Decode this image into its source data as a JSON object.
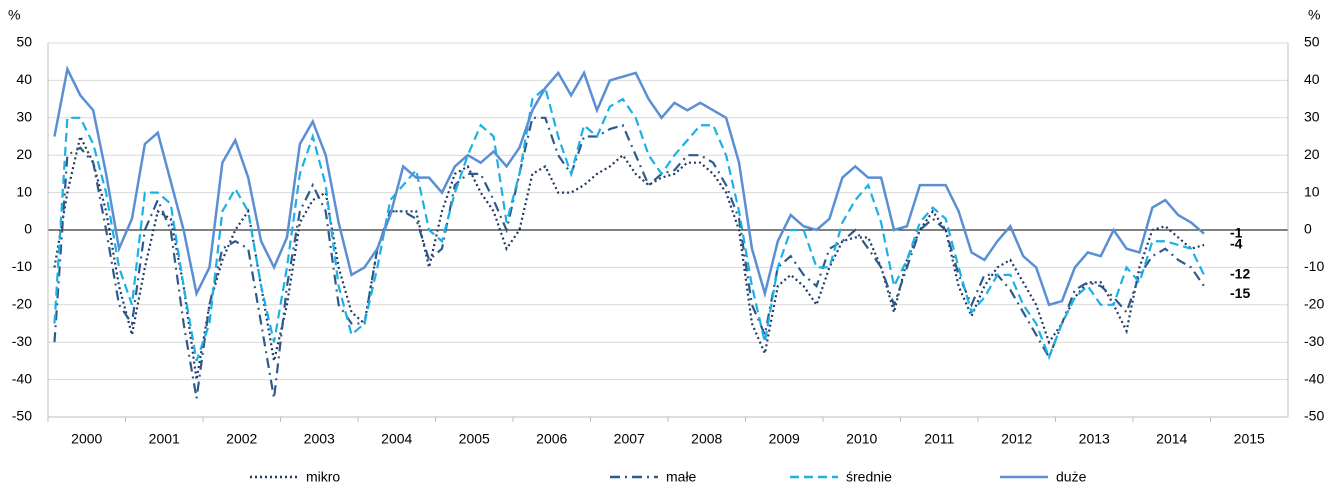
{
  "chart_data": {
    "type": "line",
    "y_unit": "%",
    "categories": [
      "2000",
      null,
      null,
      null,
      null,
      null,
      "2001",
      null,
      null,
      null,
      null,
      null,
      "2002",
      null,
      null,
      null,
      null,
      null,
      "2003",
      null,
      null,
      null,
      null,
      null,
      "2004",
      null,
      null,
      null,
      null,
      null,
      "2005",
      null,
      null,
      null,
      null,
      null,
      "2006",
      null,
      null,
      null,
      null,
      null,
      "2007",
      null,
      null,
      null,
      null,
      null,
      "2008",
      null,
      null,
      null,
      null,
      null,
      "2009",
      null,
      null,
      null,
      null,
      null,
      "2010",
      null,
      null,
      null,
      null,
      null,
      "2011",
      null,
      null,
      null,
      null,
      null,
      "2012",
      null,
      null,
      null,
      null,
      null,
      "2013",
      null,
      null,
      null,
      null,
      null,
      "2014",
      null,
      null,
      null,
      null,
      null,
      "2015",
      null,
      null,
      null,
      null,
      null
    ],
    "ylim": [
      -50,
      50
    ],
    "yticks": [
      -50,
      -40,
      -30,
      -20,
      -10,
      0,
      10,
      20,
      30,
      40,
      50
    ],
    "grid": true,
    "series": [
      {
        "name": "mikro",
        "color": "#1f3864",
        "dash": "dotted",
        "values": [
          -10,
          10,
          25,
          18,
          5,
          -15,
          -28,
          -10,
          5,
          3,
          -15,
          -40,
          -20,
          -8,
          0,
          5,
          -15,
          -35,
          -20,
          2,
          8,
          10,
          -10,
          -22,
          -25,
          -5,
          5,
          5,
          5,
          -10,
          5,
          15,
          17,
          10,
          5,
          -5,
          0,
          15,
          17,
          10,
          10,
          12,
          15,
          17,
          20,
          15,
          12,
          14,
          15,
          18,
          18,
          15,
          10,
          0,
          -25,
          -33,
          -15,
          -12,
          -15,
          -20,
          -10,
          -3,
          -2,
          -2,
          -10,
          -22,
          -8,
          0,
          5,
          0,
          -15,
          -23,
          -15,
          -10,
          -8,
          -14,
          -20,
          -30,
          -25,
          -18,
          -14,
          -14,
          -20,
          -27,
          -10,
          0,
          1,
          -2,
          -5,
          -4,
          null,
          null,
          null,
          null,
          null,
          null
        ]
      },
      {
        "name": "małe",
        "color": "#2e5a8a",
        "dash": "dashdot",
        "values": [
          -30,
          20,
          22,
          18,
          0,
          -20,
          -25,
          0,
          8,
          0,
          -25,
          -45,
          -20,
          -5,
          -3,
          -5,
          -25,
          -45,
          -15,
          5,
          12,
          5,
          -20,
          -25,
          -25,
          -5,
          5,
          5,
          3,
          -8,
          -5,
          12,
          15,
          15,
          8,
          0,
          15,
          30,
          30,
          20,
          15,
          25,
          25,
          27,
          28,
          20,
          12,
          15,
          16,
          20,
          20,
          18,
          12,
          3,
          -20,
          -28,
          -10,
          -7,
          -12,
          -15,
          -5,
          -3,
          0,
          -5,
          -10,
          -20,
          -10,
          0,
          3,
          0,
          -12,
          -20,
          -12,
          -12,
          -16,
          -22,
          -28,
          -34,
          -25,
          -16,
          -14,
          -15,
          -18,
          -22,
          -12,
          -7,
          -5,
          -8,
          -10,
          -15,
          null,
          null,
          null,
          null,
          null,
          null
        ]
      },
      {
        "name": "średnie",
        "color": "#1ab0e8",
        "dash": "dashed",
        "values": [
          -25,
          30,
          30,
          23,
          10,
          -10,
          -20,
          10,
          10,
          7,
          -15,
          -35,
          -25,
          5,
          11,
          5,
          -15,
          -30,
          -10,
          15,
          25,
          12,
          -15,
          -28,
          -25,
          -10,
          8,
          12,
          16,
          0,
          -3,
          10,
          20,
          28,
          25,
          2,
          15,
          35,
          38,
          25,
          15,
          28,
          25,
          33,
          35,
          30,
          20,
          15,
          20,
          24,
          28,
          28,
          20,
          5,
          -15,
          -30,
          -10,
          0,
          0,
          -10,
          -10,
          2,
          8,
          12,
          2,
          -15,
          -8,
          2,
          6,
          3,
          -10,
          -22,
          -18,
          -12,
          -12,
          -20,
          -25,
          -34,
          -25,
          -18,
          -15,
          -20,
          -20,
          -10,
          -14,
          -3,
          -3,
          -4,
          -5,
          -12,
          null,
          null,
          null,
          null,
          null,
          null
        ]
      },
      {
        "name": "duże",
        "color": "#5b8fd4",
        "dash": "solid",
        "values": [
          25,
          43,
          36,
          32,
          15,
          -5,
          3,
          23,
          26,
          13,
          0,
          -17,
          -10,
          18,
          24,
          14,
          -3,
          -10,
          -2,
          23,
          29,
          20,
          2,
          -12,
          -10,
          -5,
          4,
          17,
          14,
          14,
          10,
          17,
          20,
          18,
          21,
          17,
          22,
          32,
          38,
          42,
          36,
          42,
          32,
          40,
          41,
          42,
          35,
          30,
          34,
          32,
          34,
          32,
          30,
          18,
          -5,
          -17,
          -3,
          4,
          1,
          0,
          3,
          14,
          17,
          14,
          14,
          0,
          1,
          12,
          12,
          12,
          5,
          -6,
          -8,
          -3,
          1,
          -7,
          -10,
          -20,
          -19,
          -10,
          -6,
          -7,
          0,
          -5,
          -6,
          6,
          8,
          4,
          2,
          -1,
          null,
          null,
          null,
          null,
          null,
          null
        ]
      }
    ]
  }
}
